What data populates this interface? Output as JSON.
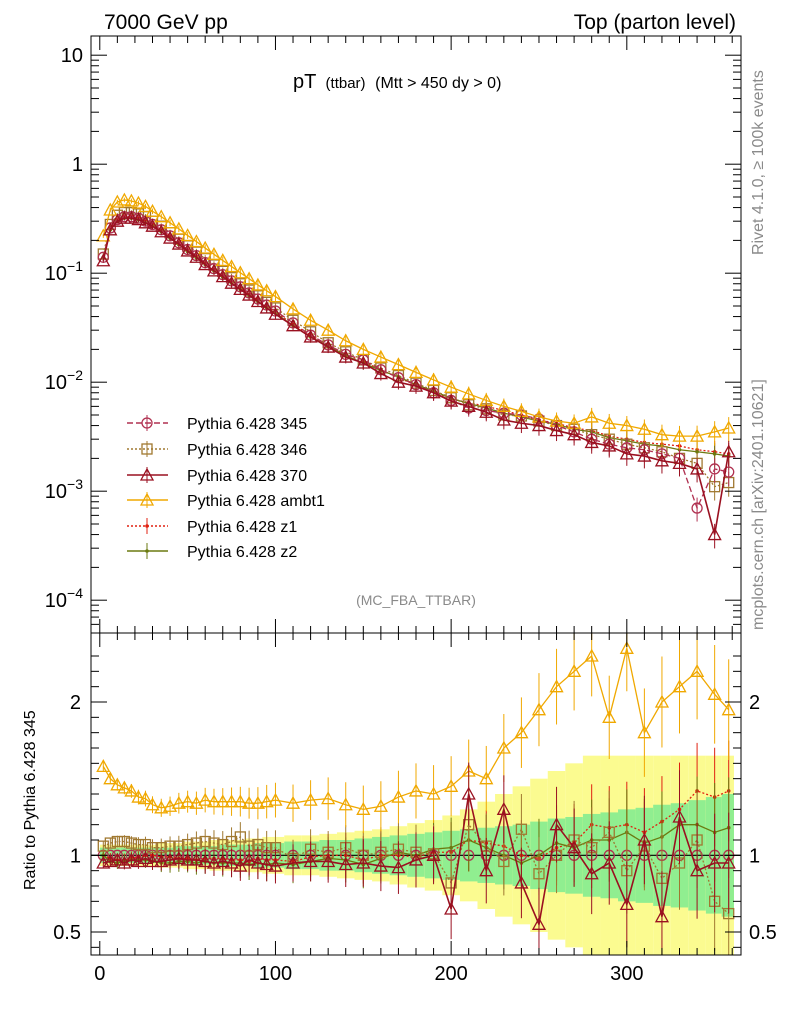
{
  "header": {
    "left_title": "7000 GeV pp",
    "right_title": "Top (parton level)"
  },
  "side_labels": {
    "rivet": "Rivet 4.1.0, ≥ 100k events",
    "mcplots": "mcplots.cern.ch [arXiv:2401.10621]"
  },
  "colors": {
    "p345": "#b03050",
    "p346": "#a07830",
    "p370": "#9a1020",
    "ambt1": "#f0a800",
    "z1": "#e02010",
    "z2": "#6b7a10",
    "band_green": "#90ee90",
    "band_yellow": "#fbfb90"
  },
  "chart_data": [
    {
      "type": "line",
      "title_main": "pT",
      "title_sub": "(ttbar)",
      "title_cut": "(Mtt > 450 dy > 0)",
      "watermark": "(MC_FBA_TTBAR)",
      "y_scale": "log",
      "ylim": [
        5e-05,
        15
      ],
      "xlim": [
        -5,
        365
      ],
      "y_ticks": [
        {
          "value": 10,
          "label": "10"
        },
        {
          "value": 1,
          "label": "1"
        },
        {
          "value": 0.1,
          "base": "10",
          "exp": "−1"
        },
        {
          "value": 0.01,
          "base": "10",
          "exp": "−2"
        },
        {
          "value": 0.001,
          "base": "10",
          "exp": "−3"
        },
        {
          "value": 0.0001,
          "base": "10",
          "exp": "−4"
        }
      ],
      "legend_position": "lower-left",
      "legend": [
        {
          "key": "p345",
          "label": "Pythia 6.428 345",
          "marker": "circle",
          "dash": "6,3"
        },
        {
          "key": "p346",
          "label": "Pythia 6.428 346",
          "marker": "square",
          "dash": "2,2"
        },
        {
          "key": "p370",
          "label": "Pythia 6.428 370",
          "marker": "triangle",
          "dash": ""
        },
        {
          "key": "ambt1",
          "label": "Pythia 6.428 ambt1",
          "marker": "triangle",
          "dash": ""
        },
        {
          "key": "z1",
          "label": "Pythia 6.428 z1",
          "marker": "dot",
          "dash": "2,2"
        },
        {
          "key": "z2",
          "label": "Pythia 6.428 z2",
          "marker": "dot",
          "dash": ""
        }
      ],
      "x": [
        2,
        6,
        10,
        14,
        18,
        22,
        26,
        30,
        35,
        40,
        45,
        50,
        55,
        60,
        65,
        70,
        75,
        80,
        85,
        90,
        95,
        100,
        110,
        120,
        130,
        140,
        150,
        160,
        170,
        180,
        190,
        200,
        210,
        220,
        230,
        240,
        250,
        260,
        270,
        280,
        290,
        300,
        310,
        320,
        330,
        340,
        350,
        358
      ],
      "series": [
        {
          "key": "p345",
          "name": "Pythia 6.428 345",
          "values": [
            0.14,
            0.26,
            0.31,
            0.33,
            0.33,
            0.32,
            0.3,
            0.28,
            0.25,
            0.22,
            0.19,
            0.165,
            0.145,
            0.125,
            0.11,
            0.097,
            0.085,
            0.075,
            0.066,
            0.058,
            0.051,
            0.045,
            0.035,
            0.027,
            0.022,
            0.018,
            0.016,
            0.013,
            0.011,
            0.0095,
            0.008,
            0.0068,
            0.0058,
            0.0055,
            0.0052,
            0.005,
            0.0046,
            0.004,
            0.0035,
            0.003,
            0.0027,
            0.0025,
            0.0024,
            0.0022,
            0.002,
            0.0007,
            0.0016,
            0.0015
          ]
        },
        {
          "key": "p346",
          "name": "Pythia 6.428 346",
          "values": [
            0.15,
            0.28,
            0.34,
            0.36,
            0.36,
            0.35,
            0.33,
            0.3,
            0.27,
            0.235,
            0.205,
            0.178,
            0.156,
            0.136,
            0.119,
            0.104,
            0.091,
            0.08,
            0.07,
            0.062,
            0.054,
            0.048,
            0.037,
            0.029,
            0.023,
            0.019,
            0.016,
            0.0135,
            0.0115,
            0.0098,
            0.0084,
            0.0072,
            0.0062,
            0.0057,
            0.005,
            0.0049,
            0.0044,
            0.004,
            0.0037,
            0.0033,
            0.003,
            0.0027,
            0.0025,
            0.0023,
            0.002,
            0.0018,
            0.0011,
            0.0012
          ]
        },
        {
          "key": "p370",
          "name": "Pythia 6.428 370",
          "values": [
            0.13,
            0.25,
            0.3,
            0.32,
            0.32,
            0.31,
            0.29,
            0.27,
            0.24,
            0.21,
            0.185,
            0.16,
            0.14,
            0.12,
            0.105,
            0.093,
            0.081,
            0.071,
            0.063,
            0.055,
            0.048,
            0.042,
            0.033,
            0.026,
            0.021,
            0.017,
            0.015,
            0.012,
            0.01,
            0.0092,
            0.008,
            0.0067,
            0.006,
            0.0053,
            0.0045,
            0.0042,
            0.004,
            0.0036,
            0.0033,
            0.0028,
            0.0026,
            0.0022,
            0.0021,
            0.0019,
            0.0018,
            0.0016,
            0.0004,
            0.0023
          ]
        },
        {
          "key": "ambt1",
          "name": "Pythia 6.428 ambt1",
          "values": [
            0.22,
            0.38,
            0.45,
            0.47,
            0.46,
            0.44,
            0.41,
            0.37,
            0.33,
            0.29,
            0.255,
            0.222,
            0.195,
            0.17,
            0.149,
            0.131,
            0.115,
            0.101,
            0.089,
            0.078,
            0.069,
            0.061,
            0.047,
            0.037,
            0.03,
            0.024,
            0.02,
            0.017,
            0.0145,
            0.0123,
            0.0105,
            0.009,
            0.0078,
            0.0068,
            0.006,
            0.0054,
            0.0048,
            0.0044,
            0.0042,
            0.0048,
            0.0042,
            0.004,
            0.0037,
            0.0033,
            0.0032,
            0.0032,
            0.0035,
            0.0038
          ]
        },
        {
          "key": "z1",
          "name": "Pythia 6.428 z1",
          "values": [
            0.14,
            0.26,
            0.31,
            0.33,
            0.33,
            0.32,
            0.3,
            0.28,
            0.25,
            0.22,
            0.19,
            0.163,
            0.142,
            0.123,
            0.108,
            0.095,
            0.083,
            0.073,
            0.064,
            0.057,
            0.05,
            0.044,
            0.034,
            0.027,
            0.022,
            0.018,
            0.0155,
            0.013,
            0.011,
            0.0094,
            0.0082,
            0.007,
            0.0065,
            0.006,
            0.0055,
            0.005,
            0.0045,
            0.0042,
            0.0038,
            0.0036,
            0.0032,
            0.003,
            0.0028,
            0.0027,
            0.0026,
            0.0024,
            0.0023,
            0.0022
          ]
        },
        {
          "key": "z2",
          "name": "Pythia 6.428 z2",
          "values": [
            0.14,
            0.25,
            0.3,
            0.32,
            0.32,
            0.31,
            0.29,
            0.27,
            0.24,
            0.21,
            0.183,
            0.158,
            0.138,
            0.12,
            0.105,
            0.092,
            0.081,
            0.071,
            0.062,
            0.055,
            0.048,
            0.043,
            0.033,
            0.026,
            0.0215,
            0.0175,
            0.015,
            0.0128,
            0.0112,
            0.0095,
            0.0083,
            0.0071,
            0.0064,
            0.0058,
            0.0052,
            0.0048,
            0.0044,
            0.0041,
            0.0037,
            0.0035,
            0.0031,
            0.0029,
            0.0027,
            0.0026,
            0.0024,
            0.0023,
            0.0022,
            0.0021
          ]
        }
      ]
    },
    {
      "type": "line",
      "ylabel": "Ratio to Pythia 6.428 345",
      "xlabel": "",
      "ylim": [
        0.35,
        2.45
      ],
      "xlim": [
        -5,
        365
      ],
      "x_ticks": [
        {
          "value": 0,
          "label": "0"
        },
        {
          "value": 100,
          "label": "100"
        },
        {
          "value": 200,
          "label": "200"
        },
        {
          "value": 300,
          "label": "300"
        }
      ],
      "y_ticks": [
        {
          "value": 0.5,
          "label": "0.5"
        },
        {
          "value": 1,
          "label": "1"
        },
        {
          "value": 2,
          "label": "2"
        }
      ],
      "reference": 1,
      "x": [
        2,
        6,
        10,
        14,
        18,
        22,
        26,
        30,
        35,
        40,
        45,
        50,
        55,
        60,
        65,
        70,
        75,
        80,
        85,
        90,
        95,
        100,
        110,
        120,
        130,
        140,
        150,
        160,
        170,
        180,
        190,
        200,
        210,
        220,
        230,
        240,
        250,
        260,
        270,
        280,
        290,
        300,
        310,
        320,
        330,
        340,
        350,
        358
      ],
      "band_green": [
        0.05,
        0.05,
        0.05,
        0.05,
        0.05,
        0.05,
        0.05,
        0.05,
        0.05,
        0.05,
        0.06,
        0.06,
        0.06,
        0.06,
        0.06,
        0.07,
        0.07,
        0.07,
        0.07,
        0.08,
        0.08,
        0.08,
        0.09,
        0.09,
        0.1,
        0.1,
        0.11,
        0.12,
        0.13,
        0.14,
        0.15,
        0.16,
        0.17,
        0.18,
        0.19,
        0.2,
        0.22,
        0.24,
        0.25,
        0.27,
        0.28,
        0.3,
        0.31,
        0.33,
        0.34,
        0.36,
        0.38,
        0.4
      ],
      "band_yellow": [
        0.07,
        0.07,
        0.07,
        0.07,
        0.07,
        0.07,
        0.07,
        0.07,
        0.08,
        0.08,
        0.08,
        0.09,
        0.09,
        0.09,
        0.1,
        0.1,
        0.1,
        0.1,
        0.11,
        0.11,
        0.12,
        0.12,
        0.13,
        0.13,
        0.14,
        0.15,
        0.16,
        0.17,
        0.19,
        0.21,
        0.23,
        0.26,
        0.3,
        0.35,
        0.4,
        0.45,
        0.5,
        0.55,
        0.6,
        0.65,
        0.65,
        0.65,
        0.65,
        0.65,
        0.65,
        0.65,
        0.65,
        0.65
      ],
      "series": [
        {
          "key": "p346",
          "name": "Pythia 6.428 346",
          "values": [
            1.06,
            1.08,
            1.09,
            1.09,
            1.08,
            1.07,
            1.07,
            1.05,
            1.05,
            1.06,
            1.06,
            1.07,
            1.08,
            1.09,
            1.08,
            1.07,
            1.09,
            1.12,
            1.06,
            1.07,
            1.05,
            1.05,
            0.98,
            1.04,
            1.02,
            1.05,
            1.0,
            1.02,
            1.04,
            1.02,
            1.01,
            0.82,
            1.2,
            1.06,
            0.96,
            1.17,
            0.88,
            1.0,
            1.1,
            1.05,
            1.15,
            0.9,
            1.06,
            0.85,
            0.95,
            1.1,
            0.7,
            0.62
          ]
        },
        {
          "key": "p370",
          "name": "Pythia 6.428 370",
          "values": [
            0.95,
            0.96,
            0.97,
            0.95,
            0.97,
            0.96,
            0.98,
            0.96,
            0.96,
            0.97,
            0.98,
            0.97,
            0.97,
            0.96,
            0.95,
            0.96,
            0.95,
            0.93,
            0.97,
            0.95,
            0.94,
            0.93,
            0.95,
            0.96,
            0.96,
            0.94,
            0.95,
            0.93,
            0.92,
            0.97,
            1.0,
            0.65,
            1.4,
            0.9,
            1.3,
            0.82,
            0.55,
            1.2,
            1.05,
            0.88,
            0.95,
            0.68,
            1.1,
            0.6,
            1.25,
            0.9,
            0.95,
            0.95
          ]
        },
        {
          "key": "ambt1",
          "name": "Pythia 6.428 ambt1",
          "values": [
            1.58,
            1.5,
            1.46,
            1.44,
            1.42,
            1.38,
            1.37,
            1.33,
            1.31,
            1.32,
            1.34,
            1.35,
            1.34,
            1.36,
            1.35,
            1.35,
            1.35,
            1.35,
            1.34,
            1.34,
            1.35,
            1.36,
            1.34,
            1.36,
            1.37,
            1.33,
            1.3,
            1.32,
            1.38,
            1.42,
            1.4,
            1.45,
            1.55,
            1.5,
            1.7,
            1.8,
            1.95,
            2.1,
            2.2,
            2.3,
            1.9,
            2.35,
            1.8,
            2.0,
            2.1,
            2.2,
            2.05,
            1.95
          ]
        },
        {
          "key": "z1",
          "name": "Pythia 6.428 z1",
          "values": [
            1.0,
            0.98,
            0.97,
            0.97,
            0.98,
            0.99,
            1.0,
            1.0,
            0.99,
            0.99,
            0.98,
            0.98,
            0.97,
            0.98,
            0.98,
            0.98,
            0.97,
            0.97,
            0.96,
            0.98,
            0.97,
            0.97,
            0.96,
            0.99,
            1.0,
            1.0,
            0.97,
            1.0,
            1.0,
            0.99,
            1.02,
            1.02,
            1.1,
            1.08,
            1.06,
            1.0,
            0.98,
            1.05,
            1.08,
            1.2,
            1.18,
            1.2,
            1.15,
            1.22,
            1.3,
            1.42,
            1.38,
            1.42
          ]
        },
        {
          "key": "z2",
          "name": "Pythia 6.428 z2",
          "values": [
            1.0,
            0.96,
            0.95,
            0.96,
            0.97,
            0.97,
            0.97,
            0.96,
            0.95,
            0.95,
            0.96,
            0.96,
            0.95,
            0.96,
            0.95,
            0.95,
            0.95,
            0.95,
            0.94,
            0.95,
            0.94,
            0.95,
            0.94,
            0.96,
            0.98,
            0.97,
            0.94,
            0.98,
            1.02,
            1.0,
            1.04,
            1.05,
            1.1,
            1.05,
            1.0,
            0.95,
            1.0,
            1.08,
            1.05,
            1.1,
            1.1,
            1.15,
            1.08,
            1.12,
            1.2,
            1.2,
            1.15,
            1.18
          ]
        }
      ]
    }
  ]
}
